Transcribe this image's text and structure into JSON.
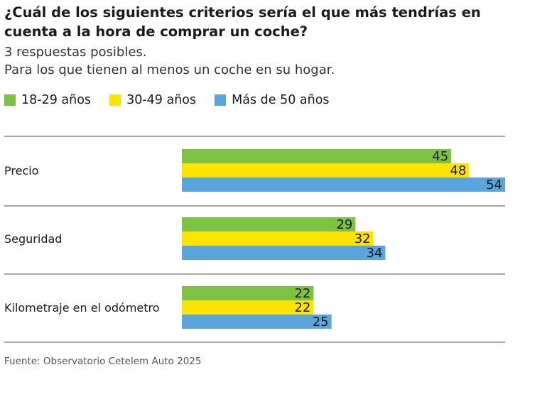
{
  "title": "¿Cuál de los siguientes criterios sería el que más tendrías en cuenta a la hora de comprar un coche?",
  "subtitle_lines": [
    "3 respuestas posibles.",
    "Para los que tienen al menos un coche en su hogar."
  ],
  "source": "Fuente: Observatorio Cetelem Auto 2025",
  "chart_data": {
    "type": "bar",
    "orientation": "horizontal",
    "categories": [
      "Precio",
      "Seguridad",
      "Kilometraje en el odómetro"
    ],
    "series": [
      {
        "name": "18-29 años",
        "color": "#7dc242",
        "values": [
          45,
          29,
          22
        ]
      },
      {
        "name": "30-49 años",
        "color": "#fde300",
        "values": [
          48,
          32,
          22
        ]
      },
      {
        "name": "Más de 50 años",
        "color": "#5aa6dc",
        "values": [
          54,
          34,
          25
        ]
      }
    ],
    "legend_position": "top-left",
    "grid": false
  }
}
